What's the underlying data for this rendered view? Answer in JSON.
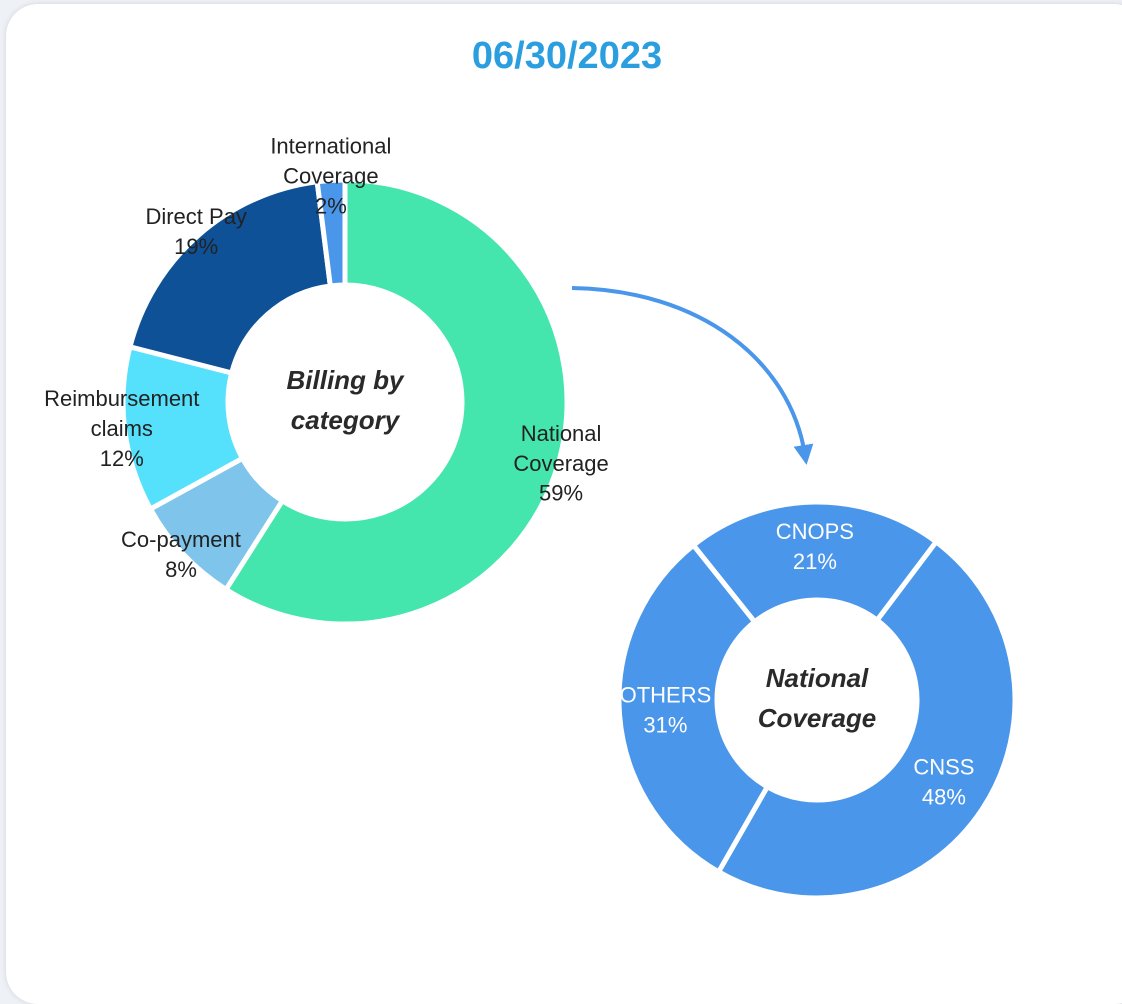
{
  "header": {
    "title": "06/30/2023"
  },
  "chart_data": [
    {
      "type": "pie",
      "center_label": "Billing by\ncategory",
      "categories": [
        "National\nCoverage",
        "Co-payment",
        "Reimbursement\nclaims",
        "Direct Pay",
        "International\nCoverage"
      ],
      "values": [
        59,
        8,
        12,
        19,
        2
      ],
      "value_labels": [
        "59%",
        "8%",
        "12%",
        "19%",
        "2%"
      ],
      "colors": [
        "#45e5ae",
        "#7fc4ea",
        "#55e0fb",
        "#0f5196",
        "#4a96eb"
      ],
      "label_color": "#222222"
    },
    {
      "type": "pie",
      "center_label": "National\nCoverage",
      "categories": [
        "CNOPS",
        "CNSS",
        "OTHERS"
      ],
      "values": [
        21,
        48,
        31
      ],
      "value_labels": [
        "21%",
        "48%",
        "31%"
      ],
      "colors": [
        "#4a96eb",
        "#4a96eb",
        "#4a96eb"
      ],
      "label_color": "#ffffff"
    }
  ]
}
